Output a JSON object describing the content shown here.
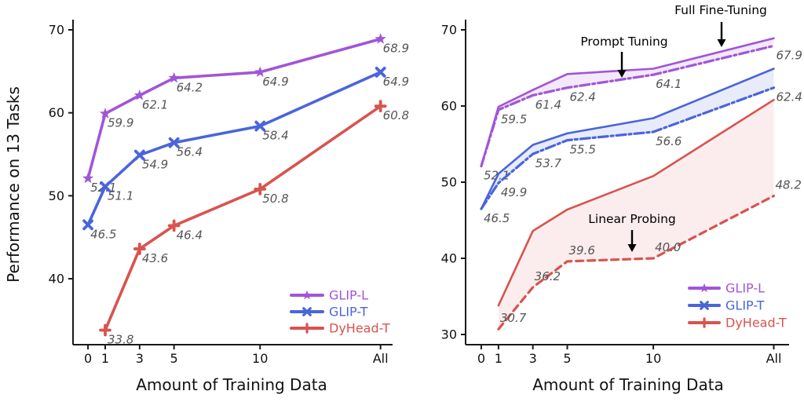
{
  "figure": {
    "xlabel": "Amount of Training Data",
    "ylabel": "Performance on 13 Tasks"
  },
  "colors": {
    "glip_l": "#A155D7",
    "glip_t": "#4A65DB",
    "dyhead_t": "#D9534F",
    "axis": "#1a1a1a",
    "data_label": "#555555"
  },
  "chart_data": [
    {
      "type": "line",
      "title": "",
      "xlabel": "Amount of Training Data",
      "ylabel": "Performance on 13 Tasks",
      "x_tick_labels": [
        "0",
        "1",
        "3",
        "5",
        "10",
        "All"
      ],
      "x_tick_values": [
        0,
        1,
        3,
        5,
        10,
        17
      ],
      "y_tick_labels": [
        "40",
        "50",
        "60",
        "70"
      ],
      "y_ticks": [
        40,
        50,
        60,
        70
      ],
      "xlim": [
        -0.87,
        17.7
      ],
      "ylim": [
        32.05,
        71.23
      ],
      "grid": false,
      "legend_position": "lower-right",
      "legend": [
        {
          "label": "GLIP-L",
          "color": "#A155D7",
          "marker": "star"
        },
        {
          "label": "GLIP-T",
          "color": "#4A65DB",
          "marker": "x"
        },
        {
          "label": "DyHead-T",
          "color": "#D9534F",
          "marker": "plus"
        }
      ],
      "series": [
        {
          "name": "GLIP-L",
          "color": "#A155D7",
          "marker": "star",
          "line": "solid",
          "width": 3.6,
          "x": [
            0,
            1,
            3,
            5,
            10,
            17
          ],
          "values": [
            52.1,
            59.9,
            62.1,
            64.2,
            64.9,
            68.9
          ],
          "labels": [
            "52.1",
            "59.9",
            "62.1",
            "64.2",
            "64.9",
            "68.9"
          ],
          "label_pos": "below",
          "fill_between": null,
          "fill_opacity": 0
        },
        {
          "name": "GLIP-T",
          "color": "#4A65DB",
          "marker": "x",
          "line": "solid",
          "width": 3.6,
          "x": [
            0,
            1,
            3,
            5,
            10,
            17
          ],
          "values": [
            46.5,
            51.1,
            54.9,
            56.4,
            58.4,
            64.9
          ],
          "labels": [
            "46.5",
            "51.1",
            "54.9",
            "56.4",
            "58.4",
            "64.9"
          ],
          "label_pos": "below",
          "fill_between": null,
          "fill_opacity": 0
        },
        {
          "name": "DyHead-T",
          "color": "#D9534F",
          "marker": "plus",
          "line": "solid",
          "width": 3.6,
          "x": [
            1,
            3,
            5,
            10,
            17
          ],
          "values": [
            33.8,
            43.6,
            46.4,
            50.8,
            60.8
          ],
          "labels": [
            "33.8",
            "43.6",
            "46.4",
            "50.8",
            "60.8"
          ],
          "label_pos": "below",
          "fill_between": null,
          "fill_opacity": 0
        }
      ],
      "annotations": []
    },
    {
      "type": "line",
      "title": "",
      "xlabel": "Amount of Training Data",
      "ylabel": "",
      "x_tick_labels": [
        "0",
        "1",
        "3",
        "5",
        "10",
        "All"
      ],
      "x_tick_values": [
        0,
        1,
        3,
        5,
        10,
        17
      ],
      "y_tick_labels": [
        "30",
        "40",
        "50",
        "60",
        "70"
      ],
      "y_ticks": [
        30,
        40,
        50,
        60,
        70
      ],
      "xlim": [
        -0.91,
        17.89
      ],
      "ylim": [
        28.66,
        71.34
      ],
      "grid": false,
      "legend_position": "lower-right",
      "legend": [
        {
          "label": "GLIP-L",
          "color": "#A155D7",
          "marker": "star"
        },
        {
          "label": "GLIP-T",
          "color": "#4A65DB",
          "marker": "x"
        },
        {
          "label": "DyHead-T",
          "color": "#D9534F",
          "marker": "plus"
        }
      ],
      "series": [
        {
          "name": "GLIP-L Full Fine-Tuning",
          "color": "#A155D7",
          "marker": "none",
          "line": "solid",
          "width": 2.6,
          "x": [
            0,
            1,
            3,
            5,
            10,
            17
          ],
          "values": [
            52.1,
            59.9,
            62.1,
            64.2,
            64.9,
            68.9
          ],
          "labels": null,
          "label_pos": "below",
          "fill_between": null,
          "fill_opacity": 0
        },
        {
          "name": "GLIP-L Prompt Tuning",
          "color": "#A155D7",
          "marker": "none",
          "line": "dashdot",
          "width": 3.2,
          "x": [
            0,
            1,
            3,
            5,
            10,
            17
          ],
          "values": [
            52.1,
            59.5,
            61.4,
            62.4,
            64.1,
            67.9
          ],
          "labels": [
            "52.1",
            "59.5",
            "61.4",
            "62.4",
            "64.1",
            "67.9"
          ],
          "label_pos": "below",
          "fill_between": 0,
          "fill_opacity": 0.13
        },
        {
          "name": "GLIP-T Full Fine-Tuning",
          "color": "#4A65DB",
          "marker": "none",
          "line": "solid",
          "width": 2.6,
          "x": [
            0,
            1,
            3,
            5,
            10,
            17
          ],
          "values": [
            46.5,
            51.1,
            54.9,
            56.4,
            58.4,
            64.9
          ],
          "labels": null,
          "label_pos": "below",
          "fill_between": null,
          "fill_opacity": 0
        },
        {
          "name": "GLIP-T Prompt Tuning",
          "color": "#4A65DB",
          "marker": "none",
          "line": "dashdot",
          "width": 3.2,
          "x": [
            0,
            1,
            3,
            5,
            10,
            17
          ],
          "values": [
            46.5,
            49.9,
            53.7,
            55.5,
            56.6,
            62.4
          ],
          "labels": [
            "46.5",
            "49.9",
            "53.7",
            "55.5",
            "56.6",
            "62.4"
          ],
          "label_pos": "below",
          "fill_between": 2,
          "fill_opacity": 0.13
        },
        {
          "name": "DyHead-T Full Fine-Tuning",
          "color": "#D9534F",
          "marker": "none",
          "line": "solid",
          "width": 2.6,
          "x": [
            1,
            3,
            5,
            10,
            17
          ],
          "values": [
            33.8,
            43.6,
            46.4,
            50.8,
            60.8
          ],
          "labels": null,
          "label_pos": "below",
          "fill_between": null,
          "fill_opacity": 0
        },
        {
          "name": "DyHead-T Linear Probing",
          "color": "#D9534F",
          "marker": "none",
          "line": "dashed",
          "width": 3.2,
          "x": [
            1,
            3,
            5,
            10,
            17
          ],
          "values": [
            30.7,
            36.2,
            39.6,
            40.0,
            48.2
          ],
          "labels": [
            "30.7",
            "36.2",
            "39.6",
            "40.0",
            "48.2"
          ],
          "label_pos": "above",
          "fill_between": 4,
          "fill_opacity": 0.1
        }
      ],
      "annotations": [
        {
          "text": "Full Fine-Tuning",
          "tx": 918,
          "ty": 18,
          "ax": 919,
          "ay1": 28,
          "ay2": 60
        },
        {
          "text": "Prompt Tuning",
          "tx": 795,
          "ty": 58,
          "ax": 792,
          "ay1": 66,
          "ay2": 99
        },
        {
          "text": "Linear Probing",
          "tx": 805,
          "ty": 284,
          "ax": 805,
          "ay1": 293,
          "ay2": 321
        }
      ]
    }
  ]
}
